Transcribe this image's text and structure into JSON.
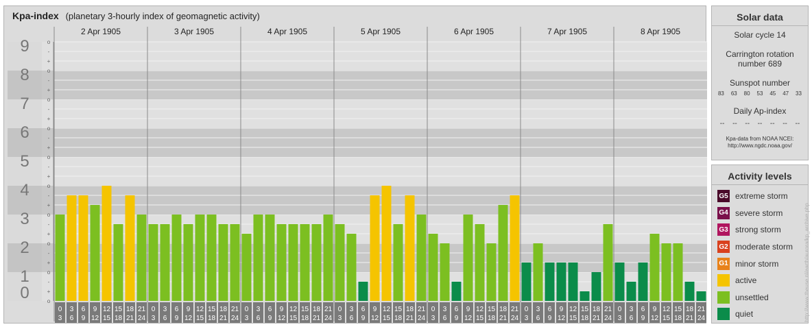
{
  "header": {
    "title": "Kpa-index",
    "subtitle": "(planetary 3-hourly index of geomagnetic activity)"
  },
  "chart_data": {
    "type": "bar",
    "title": "Kpa-index",
    "subtitle": "(planetary 3-hourly index of geomagnetic activity)",
    "ylim": [
      0,
      9
    ],
    "y_ticks": [
      "0",
      "1",
      "2",
      "3",
      "4",
      "5",
      "6",
      "7",
      "8",
      "9"
    ],
    "minor_tick_labels": [
      "o",
      "+",
      "-"
    ],
    "days": [
      "2 Apr 1905",
      "3 Apr 1905",
      "4 Apr 1905",
      "5 Apr 1905",
      "6 Apr 1905",
      "7 Apr 1905",
      "8 Apr 1905"
    ],
    "interval_labels": [
      [
        "0",
        "3"
      ],
      [
        "3",
        "6"
      ],
      [
        "6",
        "9"
      ],
      [
        "9",
        "12"
      ],
      [
        "12",
        "15"
      ],
      [
        "15",
        "18"
      ],
      [
        "18",
        "21"
      ],
      [
        "21",
        "24"
      ]
    ],
    "values": [
      [
        3.0,
        3.667,
        3.667,
        3.333,
        4.0,
        2.667,
        3.667,
        3.0
      ],
      [
        2.667,
        2.667,
        3.0,
        2.667,
        3.0,
        3.0,
        2.667,
        2.667
      ],
      [
        2.333,
        3.0,
        3.0,
        2.667,
        2.667,
        2.667,
        2.667,
        3.0
      ],
      [
        2.667,
        2.333,
        0.667,
        3.667,
        4.0,
        2.667,
        3.667,
        3.0
      ],
      [
        2.333,
        2.0,
        0.667,
        3.0,
        2.667,
        2.0,
        3.333,
        3.667
      ],
      [
        1.333,
        2.0,
        1.333,
        1.333,
        1.333,
        0.333,
        1.0,
        2.667
      ],
      [
        1.333,
        0.667,
        1.333,
        2.333,
        2.0,
        2.0,
        0.667,
        0.333
      ]
    ],
    "thresholds": {
      "active": 3.5,
      "unsettled": 1.5
    },
    "colors": {
      "quiet": "#0b8c4a",
      "unsettled": "#7cbf21",
      "active": "#f5c400",
      "axis_number": "#777777",
      "band_dark": "#c8c8c8",
      "band_light": "#e0e0e0",
      "x_label_bg": "#7a7a7a"
    }
  },
  "solar": {
    "title": "Solar data",
    "cycle": "Solar cycle 14",
    "carrington_line1": "Carrington rotation",
    "carrington_line2": "number 689",
    "sunspot_title": "Sunspot number",
    "sunspots": [
      "83",
      "63",
      "80",
      "53",
      "45",
      "47",
      "33"
    ],
    "ap_title": "Daily Ap-index",
    "ap_values": [
      "--",
      "--",
      "--",
      "--",
      "--",
      "--",
      "--"
    ],
    "source_line1": "Kpa-data from NOAA NCEI:",
    "source_line2": "http://www.ngdc.noaa.gov/"
  },
  "levels": {
    "title": "Activity levels",
    "items": [
      {
        "code": "G5",
        "label": "extreme storm",
        "color": "#4a0a2a"
      },
      {
        "code": "G4",
        "label": "severe storm",
        "color": "#7a0f4a"
      },
      {
        "code": "G3",
        "label": "strong storm",
        "color": "#b0155e"
      },
      {
        "code": "G2",
        "label": "moderate storm",
        "color": "#d9411e"
      },
      {
        "code": "G1",
        "label": "minor storm",
        "color": "#e8821a"
      },
      {
        "code": "",
        "label": "active",
        "color": "#f5c400"
      },
      {
        "code": "",
        "label": "unsettled",
        "color": "#7cbf21"
      },
      {
        "code": "",
        "label": "quiet",
        "color": "#0b8c4a"
      }
    ]
  },
  "watermark": "http://www.theuse.nl/earth/aurora/kp_archive.php"
}
